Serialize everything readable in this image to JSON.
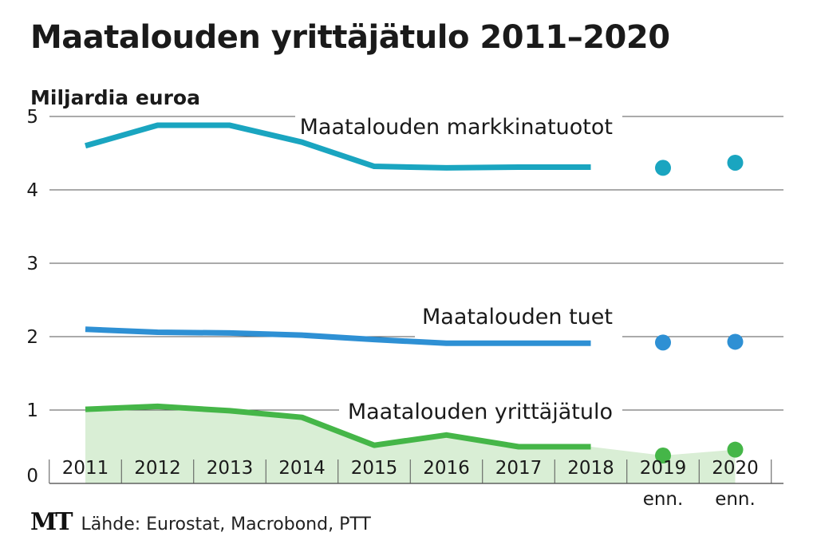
{
  "chart_data": {
    "type": "line",
    "title": "Maatalouden yrittäjätulo 2011–2020",
    "ylabel": "Miljardia euroa",
    "xlabel": "",
    "ylim": [
      0,
      5
    ],
    "yticks": [
      0,
      1,
      2,
      3,
      4,
      5
    ],
    "categories": [
      "2011",
      "2012",
      "2013",
      "2014",
      "2015",
      "2016",
      "2017",
      "2018",
      "2019",
      "2020"
    ],
    "category_sublabels": [
      "",
      "",
      "",
      "",
      "",
      "",
      "",
      "",
      "enn.",
      "enn."
    ],
    "forecast_from_index": 8,
    "grid": true,
    "series": [
      {
        "name": "Maatalouden markkinatuotot",
        "color": "#1aa5c0",
        "values": [
          4.6,
          4.88,
          4.88,
          4.65,
          4.32,
          4.3,
          4.31,
          4.31,
          4.3,
          4.37
        ]
      },
      {
        "name": "Maatalouden tuet",
        "color": "#2e90d4",
        "values": [
          2.1,
          2.06,
          2.05,
          2.02,
          1.96,
          1.91,
          1.91,
          1.91,
          1.92,
          1.93
        ]
      },
      {
        "name": "Maatalouden yrittäjätulo",
        "color": "#45b648",
        "fill_color": "#d9eed5",
        "values": [
          1.01,
          1.05,
          0.99,
          0.9,
          0.52,
          0.66,
          0.5,
          0.5,
          0.38,
          0.46
        ]
      }
    ]
  },
  "footer": {
    "logo": "MT",
    "source": "Lähde: Eurostat, Macrobond, PTT"
  }
}
